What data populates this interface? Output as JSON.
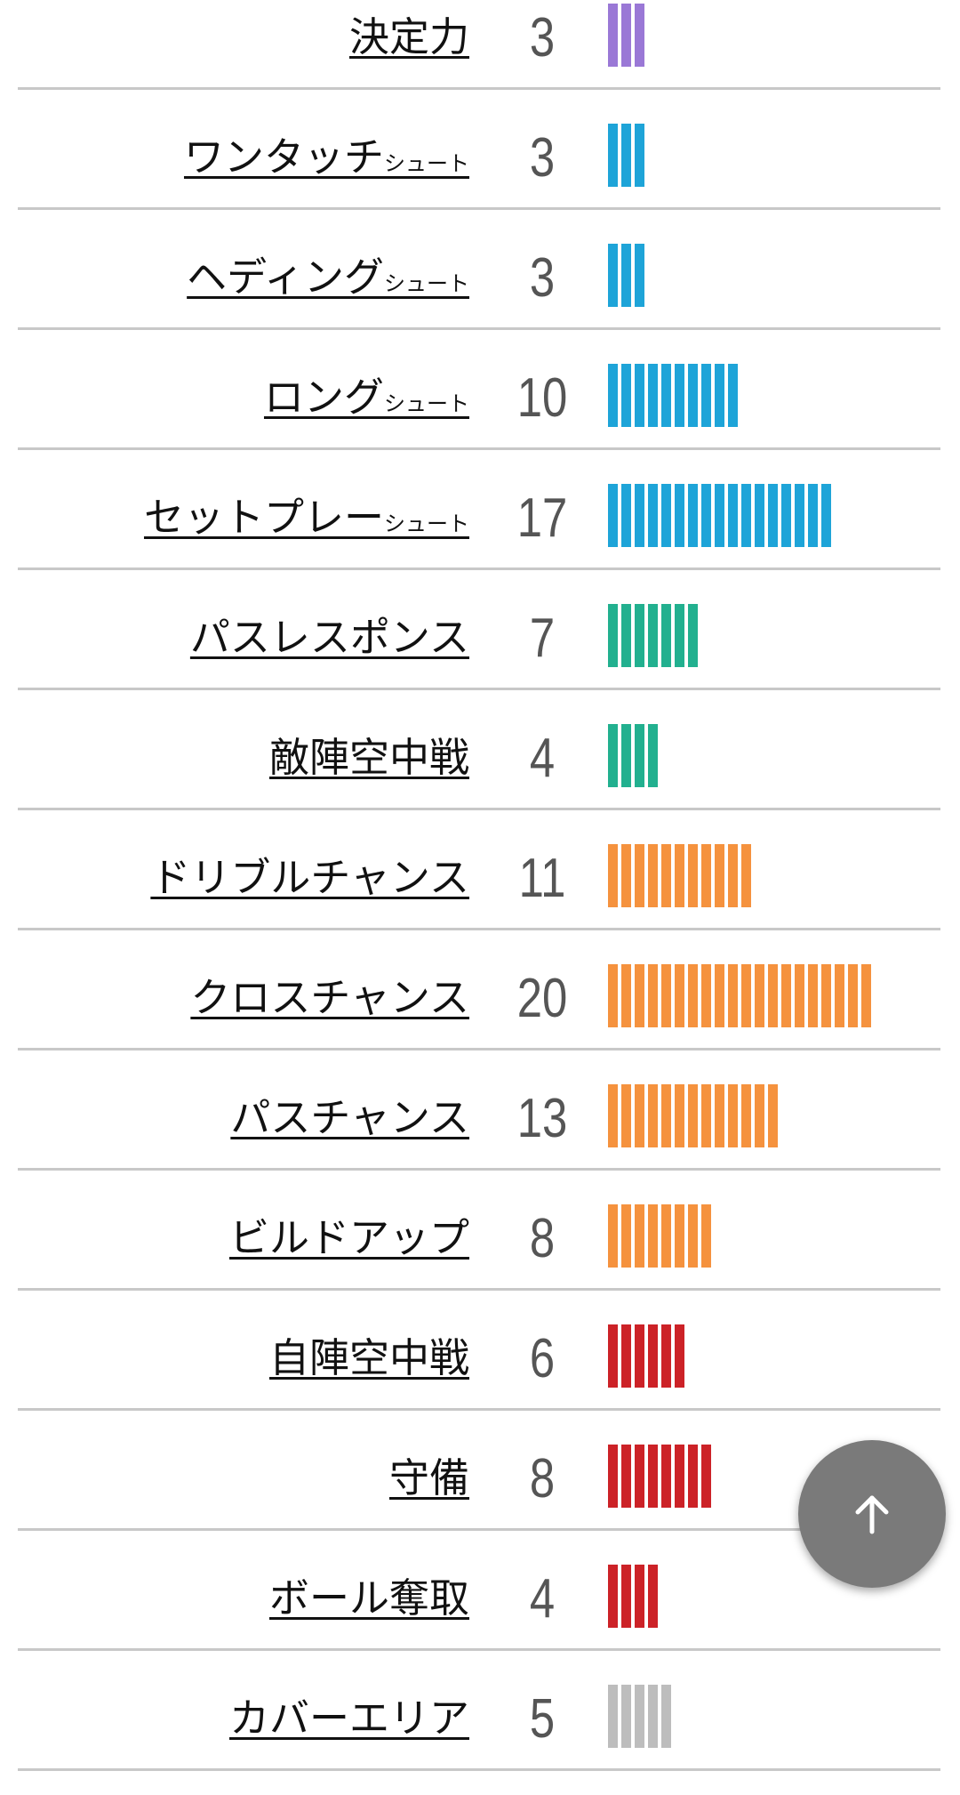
{
  "colors": {
    "purple": "#9a78d6",
    "blue": "#1ea4d8",
    "teal": "#22b08f",
    "orange": "#f5923e",
    "red": "#cc2227",
    "gray": "#bdbdbd"
  },
  "rows": [
    {
      "label": "決定力",
      "suffix": "",
      "value": "3",
      "color": "purple"
    },
    {
      "label": "ワンタッチ",
      "suffix": "シュート",
      "value": "3",
      "color": "blue"
    },
    {
      "label": "ヘディング",
      "suffix": "シュート",
      "value": "3",
      "color": "blue"
    },
    {
      "label": "ロング",
      "suffix": "シュート",
      "value": "10",
      "color": "blue"
    },
    {
      "label": "セットプレー",
      "suffix": "シュート",
      "value": "17",
      "color": "blue"
    },
    {
      "label": "パスレスポンス",
      "suffix": "",
      "value": "7",
      "color": "teal"
    },
    {
      "label": "敵陣空中戦",
      "suffix": "",
      "value": "4",
      "color": "teal"
    },
    {
      "label": "ドリブルチャンス",
      "suffix": "",
      "value": "11",
      "color": "orange"
    },
    {
      "label": "クロスチャンス",
      "suffix": "",
      "value": "20",
      "color": "orange"
    },
    {
      "label": "パスチャンス",
      "suffix": "",
      "value": "13",
      "color": "orange"
    },
    {
      "label": "ビルドアップ",
      "suffix": "",
      "value": "8",
      "color": "orange"
    },
    {
      "label": "自陣空中戦",
      "suffix": "",
      "value": "6",
      "color": "red"
    },
    {
      "label": "守備",
      "suffix": "",
      "value": "8",
      "color": "red"
    },
    {
      "label": "ボール奪取",
      "suffix": "",
      "value": "4",
      "color": "red"
    },
    {
      "label": "カバーエリア",
      "suffix": "",
      "value": "5",
      "color": "gray"
    }
  ],
  "scroll_top": {
    "icon": "arrow-up-icon"
  }
}
